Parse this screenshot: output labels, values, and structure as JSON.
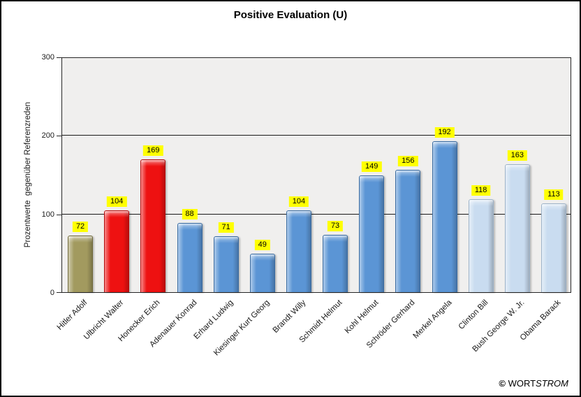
{
  "chart_data": {
    "type": "bar",
    "title": "Positive Evaluation (U)",
    "xlabel": "",
    "ylabel": "Prozentwerte  gegenüber Referenzreden",
    "ylim": [
      0,
      300
    ],
    "yticks": [
      0,
      100,
      200,
      300
    ],
    "grid": "horizontal",
    "legend_position": "none",
    "plot_background": "#f0efee",
    "value_label_background": "#ffff00",
    "categories": [
      "Hitler Adolf",
      "Ulbricht Walter",
      "Honecker Erich",
      "Adenauer Konrad",
      "Erhard Ludwig",
      "Kiesinger Kurt Georg",
      "Brandt Willy",
      "Schmidt Helmut",
      "Kohl Helmut",
      "Schröder Gerhard",
      "Merkel Angela",
      "Clinton Bill",
      "Bush George W. Jr.",
      "Obama Barack"
    ],
    "values": [
      72,
      104,
      169,
      88,
      71,
      49,
      104,
      73,
      149,
      156,
      192,
      118,
      163,
      113
    ],
    "bar_groups": [
      "olive",
      "red",
      "red",
      "blue",
      "blue",
      "blue",
      "blue",
      "blue",
      "blue",
      "blue",
      "blue",
      "lightblue",
      "lightblue",
      "lightblue"
    ],
    "colors": {
      "olive": {
        "fill": "#a29a5f",
        "border": "#6f6839"
      },
      "red": {
        "fill": "#ee1111",
        "border": "#b40a0a"
      },
      "blue": {
        "fill": "#5b95d5",
        "border": "#3a6ba0"
      },
      "lightblue": {
        "fill": "#c9dcf0",
        "border": "#9db3c8"
      }
    }
  },
  "footer": {
    "copyright": "©",
    "brand_regular": "WORT",
    "brand_italic": "STROM"
  }
}
